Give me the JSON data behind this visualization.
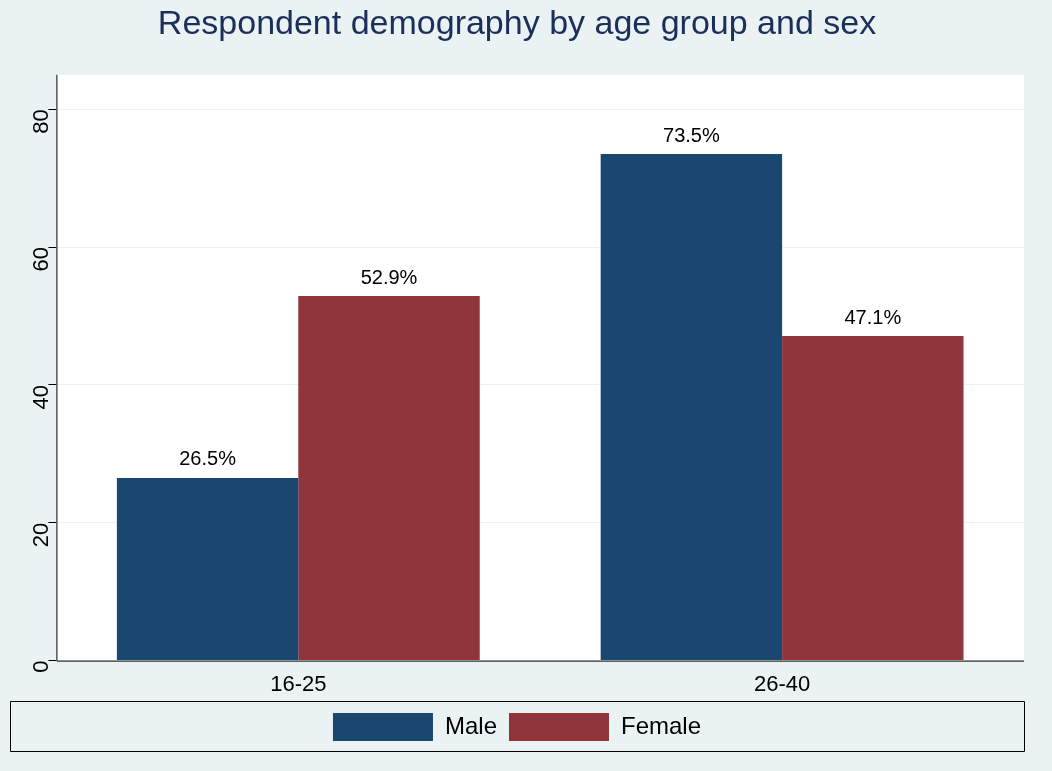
{
  "chart_data": {
    "type": "bar",
    "title": "Respondent demography by age group and sex",
    "categories": [
      "16-25",
      "26-40"
    ],
    "series": [
      {
        "name": "Male",
        "color": "#1a476f",
        "values": [
          26.5,
          73.5
        ],
        "value_labels": [
          "26.5%",
          "73.5%"
        ]
      },
      {
        "name": "Female",
        "color": "#90353b",
        "values": [
          52.9,
          47.1
        ],
        "value_labels": [
          "52.9%",
          "47.1%"
        ]
      }
    ],
    "ylim": [
      0,
      85
    ],
    "yticks": [
      0,
      20,
      40,
      60,
      80
    ],
    "grid": "y",
    "legend": "bottom"
  }
}
